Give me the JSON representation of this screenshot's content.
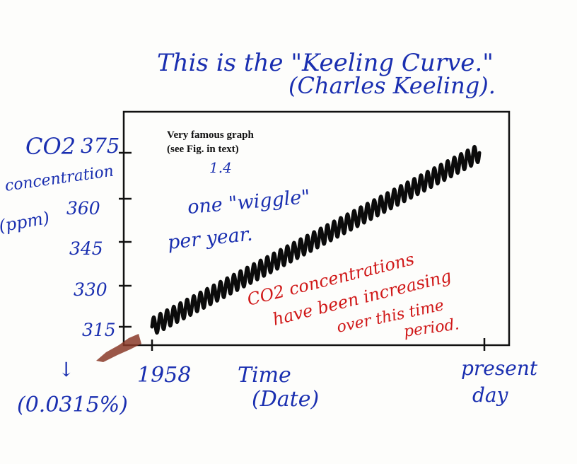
{
  "header": {
    "line1": "This is the \"Keeling Curve.\"",
    "line2": "(Charles Keeling)."
  },
  "printed_note": {
    "line1": "Very famous graph",
    "line2": "(see Fig.    in text)",
    "fig_number": "1.4"
  },
  "annotations": {
    "wiggle_line1": "one \"wiggle\"",
    "wiggle_line2": "per year.",
    "red_line1": "CO2 concentrations",
    "red_line2": "have been increasing",
    "red_line3": "over this time",
    "red_line4": "period.",
    "percent": "(0.0315%)",
    "arrow_symbol": "↓"
  },
  "colors": {
    "ink_blue": "#1a2fb0",
    "ink_red": "#d01818",
    "curve": "#0b0b0b",
    "frame": "#111111",
    "origin_smudge": "#8a3a28"
  },
  "chart_data": {
    "type": "line",
    "title": "",
    "ylabel": {
      "line1": "CO2",
      "line2": "concentration",
      "line3": "(ppm)"
    },
    "xlabel": {
      "line1": "Time",
      "line2": "(Date)"
    },
    "x_ticks": [
      {
        "label": "1958",
        "value": 0
      },
      {
        "label": "present day",
        "label_line1": "present",
        "label_line2": "day",
        "value": 1
      }
    ],
    "y_ticks": [
      {
        "label": "315",
        "value": 315
      },
      {
        "label": "330",
        "value": 330
      },
      {
        "label": "345",
        "value": 345
      },
      {
        "label": "360",
        "value": 360
      },
      {
        "label": "375",
        "value": 375
      }
    ],
    "ylim": [
      308,
      384
    ],
    "xlim": [
      0,
      1
    ],
    "series": [
      {
        "start": 315,
        "end": 375,
        "cycles": 49,
        "seasonal_amplitude": 3
      }
    ],
    "grid": false
  }
}
